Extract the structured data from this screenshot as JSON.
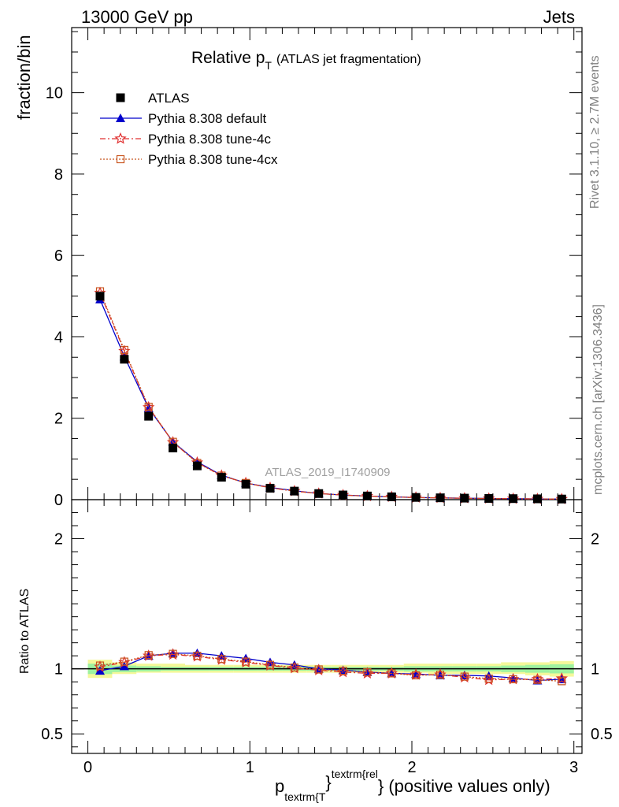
{
  "header": {
    "left": "13000 GeV pp",
    "right": "Jets"
  },
  "side": {
    "rivet_prefix": "Rivet 3.1.10, ",
    "rivet_events": "≥ 2.7M events",
    "mcplots": "mcplots.cern.ch [arXiv:1306.3436]"
  },
  "chart_data": {
    "type": "line",
    "title": {
      "main": "Relative p",
      "sub": "T",
      "paren": "(ATLAS jet fragmentation)"
    },
    "watermark": "ATLAS_2019_I1740909",
    "ylabel": "fraction/bin",
    "ratio_ylabel": "Ratio to ATLAS",
    "xlabel": {
      "p": "p",
      "sub": "textrm{T",
      "brace": "}",
      "sup": "textrm{rel",
      "tail": "} (positive values only)"
    },
    "xlim": [
      -0.1,
      3.05
    ],
    "ylim": [
      0,
      11.6
    ],
    "ratio_ylim": [
      0.35,
      2.3
    ],
    "xticks": [
      0,
      1,
      2,
      3
    ],
    "xtick_labels": [
      "0",
      "1",
      "2",
      "3"
    ],
    "yticks": [
      0,
      2,
      4,
      6,
      8,
      10
    ],
    "ytick_labels": [
      "0",
      "2",
      "4",
      "6",
      "8",
      "10"
    ],
    "ratio_yticks": [
      0.5,
      1,
      2
    ],
    "ratio_ytick_labels": [
      "0.5",
      "1",
      "2"
    ],
    "x": [
      0.075,
      0.225,
      0.375,
      0.525,
      0.675,
      0.825,
      0.975,
      1.125,
      1.275,
      1.425,
      1.575,
      1.725,
      1.875,
      2.025,
      2.175,
      2.325,
      2.475,
      2.625,
      2.775,
      2.925
    ],
    "series": [
      {
        "name": "ATLAS",
        "style": "data",
        "color": "#000000",
        "values": [
          5.0,
          3.45,
          2.05,
          1.27,
          0.83,
          0.55,
          0.38,
          0.28,
          0.21,
          0.15,
          0.115,
          0.09,
          0.07,
          0.055,
          0.045,
          0.037,
          0.03,
          0.025,
          0.02,
          0.015
        ],
        "ratio": [
          1,
          1,
          1,
          1,
          1,
          1,
          1,
          1,
          1,
          1,
          1,
          1,
          1,
          1,
          1,
          1,
          1,
          1,
          1,
          1
        ]
      },
      {
        "name": "Pythia 8.308 default",
        "style": "default",
        "color": "#0000cc",
        "values": [
          4.92,
          3.52,
          2.25,
          1.42,
          0.93,
          0.6,
          0.41,
          0.3,
          0.22,
          0.15,
          0.114,
          0.088,
          0.068,
          0.053,
          0.043,
          0.035,
          0.028,
          0.023,
          0.018,
          0.014
        ],
        "ratio": [
          0.985,
          1.02,
          1.1,
          1.12,
          1.12,
          1.1,
          1.08,
          1.05,
          1.03,
          1.0,
          0.99,
          0.975,
          0.965,
          0.96,
          0.95,
          0.95,
          0.945,
          0.93,
          0.91,
          0.92
        ]
      },
      {
        "name": "Pythia 8.308 tune-4c",
        "style": "tune4c",
        "color": "#e03030",
        "values": [
          5.08,
          3.65,
          2.27,
          1.41,
          0.91,
          0.59,
          0.41,
          0.29,
          0.21,
          0.15,
          0.112,
          0.087,
          0.067,
          0.052,
          0.043,
          0.034,
          0.027,
          0.023,
          0.018,
          0.014
        ],
        "ratio": [
          1.015,
          1.05,
          1.1,
          1.11,
          1.095,
          1.07,
          1.05,
          1.025,
          1.005,
          0.99,
          0.975,
          0.965,
          0.965,
          0.955,
          0.955,
          0.935,
          0.915,
          0.92,
          0.92,
          0.925
        ]
      },
      {
        "name": "Pythia 8.308 tune-4cx",
        "style": "tune4cx",
        "color": "#c8541e",
        "values": [
          5.12,
          3.68,
          2.28,
          1.42,
          0.9,
          0.59,
          0.41,
          0.29,
          0.21,
          0.15,
          0.112,
          0.087,
          0.067,
          0.052,
          0.043,
          0.034,
          0.027,
          0.023,
          0.018,
          0.014
        ],
        "ratio": [
          1.025,
          1.055,
          1.105,
          1.115,
          1.1,
          1.075,
          1.055,
          1.03,
          1.01,
          0.995,
          0.985,
          0.975,
          0.965,
          0.95,
          0.955,
          0.94,
          0.925,
          0.92,
          0.915,
          0.905
        ]
      }
    ],
    "ratio_bands": {
      "outer": [
        [
          0.93,
          1.07
        ],
        [
          0.96,
          1.05
        ],
        [
          0.97,
          1.04
        ],
        [
          0.97,
          1.04
        ],
        [
          0.97,
          1.03
        ],
        [
          0.97,
          1.03
        ],
        [
          0.97,
          1.03
        ],
        [
          0.97,
          1.03
        ],
        [
          0.97,
          1.03
        ],
        [
          0.97,
          1.03
        ],
        [
          0.97,
          1.03
        ],
        [
          0.97,
          1.03
        ],
        [
          0.97,
          1.03
        ],
        [
          0.97,
          1.04
        ],
        [
          0.96,
          1.04
        ],
        [
          0.96,
          1.04
        ],
        [
          0.96,
          1.04
        ],
        [
          0.96,
          1.05
        ],
        [
          0.95,
          1.05
        ],
        [
          0.94,
          1.06
        ]
      ],
      "inner": [
        [
          0.96,
          1.04
        ],
        [
          0.975,
          1.025
        ],
        [
          0.98,
          1.02
        ],
        [
          0.985,
          1.015
        ],
        [
          0.985,
          1.015
        ],
        [
          0.985,
          1.015
        ],
        [
          0.985,
          1.015
        ],
        [
          0.985,
          1.015
        ],
        [
          0.985,
          1.015
        ],
        [
          0.985,
          1.015
        ],
        [
          0.985,
          1.015
        ],
        [
          0.985,
          1.015
        ],
        [
          0.985,
          1.015
        ],
        [
          0.98,
          1.02
        ],
        [
          0.98,
          1.02
        ],
        [
          0.98,
          1.02
        ],
        [
          0.98,
          1.02
        ],
        [
          0.975,
          1.025
        ],
        [
          0.97,
          1.03
        ],
        [
          0.965,
          1.035
        ]
      ],
      "outer_color": "#f4f89a",
      "inner_color": "#9ef2a0"
    }
  }
}
